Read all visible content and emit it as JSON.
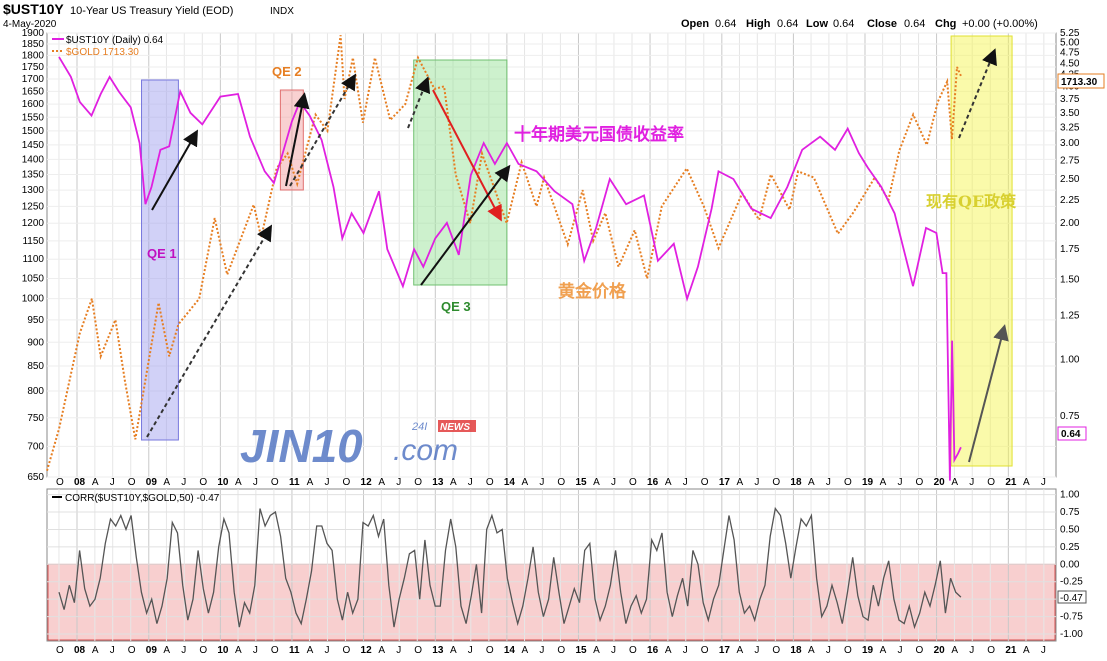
{
  "header": {
    "symbol": "$UST10Y",
    "description": "10-Year US Treasury Yield (EOD)",
    "exchange": "INDX",
    "date": "4-May-2020",
    "ohlc": {
      "open_label": "Open",
      "open": "0.64",
      "high_label": "High",
      "high": "0.64",
      "low_label": "Low",
      "low": "0.64",
      "close_label": "Close",
      "close": "0.64",
      "chg_label": "Chg",
      "chg": "+0.00 (+0.00%)"
    }
  },
  "legend": {
    "ust": "$UST10Y (Daily) 0.64",
    "gold": "$GOLD 1713.30"
  },
  "colors": {
    "ust": "#e020e0",
    "gold": "#e67e22",
    "corr": "#555555",
    "qe1": "#9999ee",
    "qe2": "#f29a9a",
    "qe3": "#90e090",
    "current": "#f5f542",
    "corr_band": "#f2a8a8"
  },
  "chart_data": [
    {
      "type": "line",
      "x_axis_labels": [
        "O",
        "08",
        "A",
        "J",
        "O",
        "09",
        "A",
        "J",
        "O",
        "10",
        "A",
        "J",
        "O",
        "11",
        "A",
        "J",
        "O",
        "12",
        "A",
        "J",
        "O",
        "13",
        "A",
        "J",
        "O",
        "14",
        "A",
        "J",
        "O",
        "15",
        "A",
        "J",
        "O",
        "16",
        "A",
        "J",
        "O",
        "17",
        "A",
        "J",
        "O",
        "18",
        "A",
        "J",
        "O",
        "19",
        "A",
        "J",
        "O",
        "20",
        "A",
        "J",
        "O",
        "21",
        "A",
        "J"
      ],
      "left_axis_ticks": [
        650,
        700,
        750,
        800,
        850,
        900,
        950,
        1000,
        1050,
        1100,
        1150,
        1200,
        1250,
        1300,
        1350,
        1400,
        1450,
        1500,
        1550,
        1600,
        1650,
        1700,
        1750,
        1800,
        1850,
        1900
      ],
      "right_axis_ticks": [
        0.75,
        1.0,
        1.25,
        1.5,
        1.75,
        2.0,
        2.25,
        2.5,
        2.75,
        3.0,
        3.25,
        3.5,
        3.75,
        4.0,
        4.25,
        4.5,
        4.75,
        5.0,
        5.25
      ],
      "right_axis_tick_labels": [
        "0.75",
        "1.00",
        "1.25",
        "1.50",
        "1.75",
        "2.00",
        "2.25",
        "2.50",
        "2.75",
        "3.00",
        "3.25",
        "3.50",
        "3.75",
        "4.00",
        "4.25",
        "4.50",
        "4.75",
        "5.00",
        "5.25"
      ],
      "left_scale": "log",
      "right_scale": "log",
      "left_ylim": [
        650,
        1900
      ],
      "right_ylim": [
        0.55,
        5.25
      ],
      "last_values": {
        "gold": "1713.30",
        "ust": "0.64"
      },
      "series": [
        {
          "name": "$UST10Y (Daily) 0.64",
          "axis": "right",
          "style": "solid",
          "x": [
            "2007-10-01",
            "2007-12-01",
            "2008-01-15",
            "2008-03-15",
            "2008-05-01",
            "2008-06-15",
            "2008-08-01",
            "2008-10-01",
            "2008-11-15",
            "2008-12-15",
            "2009-01-15",
            "2009-03-01",
            "2009-04-15",
            "2009-06-10",
            "2009-08-01",
            "2009-10-01",
            "2010-01-01",
            "2010-04-01",
            "2010-06-01",
            "2010-08-15",
            "2010-10-01",
            "2010-11-15",
            "2011-01-01",
            "2011-02-10",
            "2011-04-01",
            "2011-06-01",
            "2011-08-01",
            "2011-09-15",
            "2011-11-01",
            "2012-01-01",
            "2012-03-20",
            "2012-05-01",
            "2012-07-20",
            "2012-09-15",
            "2012-11-01",
            "2013-01-01",
            "2013-03-01",
            "2013-05-01",
            "2013-07-01",
            "2013-09-05",
            "2013-11-01",
            "2014-01-01",
            "2014-03-01",
            "2014-06-01",
            "2014-09-01",
            "2014-12-01",
            "2015-01-30",
            "2015-04-01",
            "2015-06-10",
            "2015-09-01",
            "2015-12-01",
            "2016-02-10",
            "2016-05-01",
            "2016-07-08",
            "2016-09-01",
            "2016-11-10",
            "2016-12-15",
            "2017-03-01",
            "2017-06-01",
            "2017-09-07",
            "2017-12-01",
            "2018-02-15",
            "2018-05-17",
            "2018-08-01",
            "2018-10-05",
            "2018-12-01",
            "2019-01-15",
            "2019-03-25",
            "2019-06-01",
            "2019-09-03",
            "2019-11-08",
            "2019-12-31",
            "2020-02-01",
            "2020-02-20",
            "2020-03-09",
            "2020-03-20",
            "2020-04-01",
            "2020-04-20",
            "2020-05-04"
          ],
          "values": [
            4.65,
            4.2,
            3.7,
            3.45,
            3.85,
            4.2,
            3.9,
            3.6,
            3.0,
            2.2,
            2.4,
            2.9,
            2.95,
            3.9,
            3.5,
            3.3,
            3.8,
            3.85,
            3.1,
            2.6,
            2.45,
            2.85,
            3.35,
            3.7,
            3.45,
            3.05,
            2.4,
            1.85,
            2.1,
            1.9,
            2.35,
            1.75,
            1.45,
            1.75,
            1.6,
            1.85,
            2.0,
            1.7,
            2.55,
            3.0,
            2.7,
            3.0,
            2.7,
            2.6,
            2.35,
            2.2,
            1.65,
            1.95,
            2.5,
            2.2,
            2.3,
            1.65,
            1.8,
            1.36,
            1.6,
            2.15,
            2.6,
            2.5,
            2.15,
            2.05,
            2.4,
            2.9,
            3.1,
            2.9,
            3.23,
            2.85,
            2.65,
            2.4,
            2.1,
            1.45,
            1.95,
            1.9,
            1.55,
            1.55,
            0.54,
            1.1,
            0.6,
            0.62,
            0.64
          ]
        },
        {
          "name": "$GOLD 1713.30",
          "axis": "left",
          "style": "dotted",
          "x": [
            "2007-08-01",
            "2007-10-01",
            "2008-01-15",
            "2008-03-17",
            "2008-05-01",
            "2008-07-15",
            "2008-09-01",
            "2008-10-24",
            "2009-02-20",
            "2009-04-15",
            "2009-06-01",
            "2009-09-15",
            "2009-12-03",
            "2010-02-05",
            "2010-06-20",
            "2010-07-28",
            "2010-10-15",
            "2010-12-10",
            "2011-01-28",
            "2011-05-01",
            "2011-07-01",
            "2011-09-06",
            "2011-09-26",
            "2011-11-08",
            "2011-12-29",
            "2012-02-28",
            "2012-05-16",
            "2012-08-01",
            "2012-10-05",
            "2012-12-28",
            "2013-02-15",
            "2013-04-15",
            "2013-06-28",
            "2013-08-27",
            "2013-12-31",
            "2014-03-17",
            "2014-06-01",
            "2014-07-10",
            "2014-11-07",
            "2015-01-22",
            "2015-03-17",
            "2015-05-18",
            "2015-07-24",
            "2015-10-15",
            "2015-12-17",
            "2016-03-01",
            "2016-07-06",
            "2016-10-01",
            "2016-12-15",
            "2017-04-15",
            "2017-07-10",
            "2017-09-08",
            "2017-12-12",
            "2018-01-25",
            "2018-04-15",
            "2018-08-16",
            "2018-11-01",
            "2019-02-20",
            "2019-05-01",
            "2019-06-25",
            "2019-09-04",
            "2019-11-12",
            "2020-01-08",
            "2020-02-24",
            "2020-03-19",
            "2020-04-14",
            "2020-05-04"
          ],
          "values": [
            660,
            730,
            920,
            1000,
            870,
            950,
            820,
            712,
            990,
            870,
            940,
            1000,
            1215,
            1060,
            1255,
            1160,
            1370,
            1420,
            1320,
            1560,
            1500,
            1890,
            1620,
            1790,
            1530,
            1790,
            1540,
            1600,
            1790,
            1660,
            1670,
            1350,
            1200,
            1420,
            1200,
            1390,
            1250,
            1340,
            1140,
            1300,
            1150,
            1230,
            1080,
            1180,
            1050,
            1250,
            1370,
            1250,
            1130,
            1290,
            1210,
            1350,
            1240,
            1360,
            1340,
            1170,
            1230,
            1340,
            1270,
            1430,
            1560,
            1450,
            1610,
            1690,
            1470,
            1750,
            1713
          ]
        }
      ],
      "annotations": [
        "QE 1",
        "QE 2",
        "QE 3",
        "十年期美元国债收益率",
        "黄金价格",
        "现有QE政策"
      ]
    },
    {
      "type": "line",
      "legend": "CORR($UST10Y,$GOLD,50) -0.47",
      "y_axis_ticks": [
        -1.0,
        -0.75,
        -0.5,
        -0.25,
        0.0,
        0.25,
        0.5,
        0.75,
        1.0
      ],
      "y_axis_tick_labels": [
        "-1.00",
        "-0.75",
        "-0.50",
        "-0.25",
        "0.00",
        "0.25",
        "0.50",
        "0.75",
        "1.00"
      ],
      "ylim": [
        -1.1,
        1.08
      ],
      "last_value": "-0.47",
      "x_axis_labels": [
        "O",
        "08",
        "A",
        "J",
        "O",
        "09",
        "A",
        "J",
        "O",
        "10",
        "A",
        "J",
        "O",
        "11",
        "A",
        "J",
        "O",
        "12",
        "A",
        "J",
        "O",
        "13",
        "A",
        "J",
        "O",
        "14",
        "A",
        "J",
        "O",
        "15",
        "A",
        "J",
        "O",
        "16",
        "A",
        "J",
        "O",
        "17",
        "A",
        "J",
        "O",
        "18",
        "A",
        "J",
        "O",
        "19",
        "A",
        "J",
        "O",
        "20",
        "A",
        "J",
        "O",
        "21",
        "A",
        "J"
      ],
      "series": [
        {
          "name": "CORR($UST10Y,$GOLD,50) -0.47",
          "values": [
            -0.4,
            -0.65,
            -0.3,
            -0.55,
            0.2,
            -0.35,
            -0.6,
            -0.5,
            -0.2,
            0.3,
            0.65,
            0.55,
            0.7,
            0.5,
            0.7,
            0.1,
            -0.4,
            -0.7,
            -0.5,
            -0.85,
            -0.6,
            -0.2,
            0.6,
            0.45,
            -0.3,
            -0.8,
            -0.5,
            0.2,
            -0.35,
            -0.7,
            -0.4,
            0.25,
            0.65,
            0.45,
            -0.4,
            -0.9,
            -0.55,
            -0.7,
            -0.3,
            0.8,
            0.55,
            0.7,
            0.75,
            0.4,
            -0.2,
            -0.4,
            -0.7,
            -0.85,
            -0.5,
            -0.1,
            0.55,
            0.55,
            0.3,
            0.2,
            -0.5,
            -0.8,
            -0.4,
            -0.7,
            -0.5,
            0.6,
            0.55,
            0.7,
            0.4,
            0.65,
            -0.3,
            -0.9,
            -0.5,
            -0.2,
            0.15,
            0.2,
            -0.5,
            0.35,
            -0.3,
            -0.6,
            -0.6,
            0.2,
            0.65,
            0.25,
            -0.6,
            -0.85,
            -0.45,
            0.0,
            -0.7,
            0.5,
            0.7,
            0.45,
            0.5,
            -0.2,
            -0.55,
            -0.85,
            -0.6,
            -0.2,
            0.25,
            -0.4,
            -0.75,
            -0.5,
            0.1,
            -0.4,
            -0.85,
            -0.6,
            -0.35,
            -0.55,
            0.2,
            0.3,
            -0.5,
            -0.8,
            -0.6,
            -0.3,
            0.2,
            -0.4,
            -0.85,
            -0.6,
            -0.45,
            -0.7,
            -0.5,
            0.35,
            0.2,
            0.45,
            -0.4,
            -0.75,
            -0.45,
            -0.2,
            -0.6,
            0.2,
            0.0,
            -0.55,
            -0.8,
            -0.5,
            -0.3,
            0.2,
            0.7,
            0.35,
            -0.4,
            -0.7,
            -0.6,
            -0.8,
            -0.5,
            -0.3,
            0.4,
            0.8,
            0.7,
            0.3,
            -0.2,
            0.25,
            0.65,
            0.55,
            0.7,
            -0.2,
            -0.75,
            -0.6,
            -0.3,
            -0.55,
            -0.85,
            -0.4,
            0.1,
            -0.45,
            -0.75,
            -0.8,
            -0.3,
            -0.6,
            -0.2,
            0.05,
            -0.5,
            -0.8,
            -0.85,
            -0.6,
            -0.9,
            -0.7,
            -0.4,
            -0.6,
            -0.3,
            0.05,
            -0.7,
            -0.2,
            -0.4,
            -0.47
          ]
        }
      ]
    }
  ],
  "watermark": {
    "brand": "JIN10",
    "dot": ".com",
    "sub": "24I",
    "news": "NEWS"
  }
}
